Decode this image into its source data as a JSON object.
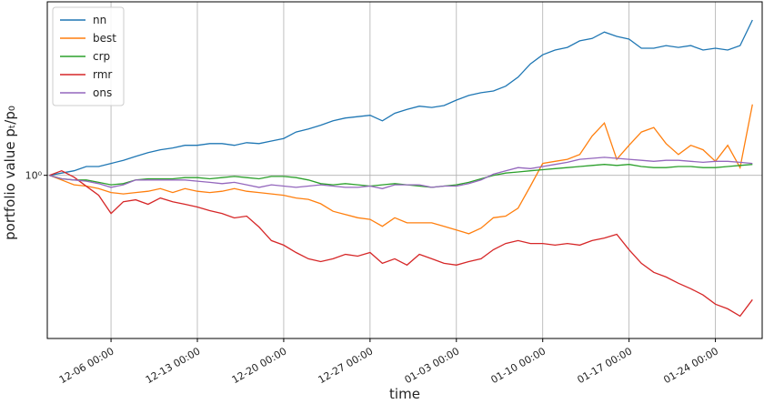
{
  "chart_data": {
    "type": "line",
    "xlabel": "time",
    "ylabel": "portfolio value pₜ/p₀",
    "x": [
      "12-01 00:00",
      "12-02 00:00",
      "12-03 00:00",
      "12-04 00:00",
      "12-05 00:00",
      "12-06 00:00",
      "12-07 00:00",
      "12-08 00:00",
      "12-09 00:00",
      "12-10 00:00",
      "12-11 00:00",
      "12-12 00:00",
      "12-13 00:00",
      "12-14 00:00",
      "12-15 00:00",
      "12-16 00:00",
      "12-17 00:00",
      "12-18 00:00",
      "12-19 00:00",
      "12-20 00:00",
      "12-21 00:00",
      "12-22 00:00",
      "12-23 00:00",
      "12-24 00:00",
      "12-25 00:00",
      "12-26 00:00",
      "12-27 00:00",
      "12-28 00:00",
      "12-29 00:00",
      "12-30 00:00",
      "12-31 00:00",
      "01-01 00:00",
      "01-02 00:00",
      "01-03 00:00",
      "01-04 00:00",
      "01-05 00:00",
      "01-06 00:00",
      "01-07 00:00",
      "01-08 00:00",
      "01-09 00:00",
      "01-10 00:00",
      "01-11 00:00",
      "01-12 00:00",
      "01-13 00:00",
      "01-14 00:00",
      "01-15 00:00",
      "01-16 00:00",
      "01-17 00:00",
      "01-18 00:00",
      "01-19 00:00",
      "01-20 00:00",
      "01-21 00:00",
      "01-22 00:00",
      "01-23 00:00",
      "01-24 00:00",
      "01-25 00:00",
      "01-26 00:00",
      "01-27 00:00"
    ],
    "series": [
      {
        "name": "nn",
        "color": "#1f77b4",
        "values": [
          1.0,
          1.02,
          1.04,
          1.08,
          1.08,
          1.11,
          1.14,
          1.18,
          1.22,
          1.25,
          1.27,
          1.3,
          1.3,
          1.32,
          1.32,
          1.3,
          1.33,
          1.32,
          1.35,
          1.38,
          1.46,
          1.5,
          1.55,
          1.61,
          1.65,
          1.67,
          1.69,
          1.61,
          1.72,
          1.78,
          1.83,
          1.81,
          1.84,
          1.93,
          2.01,
          2.06,
          2.09,
          2.18,
          2.36,
          2.65,
          2.87,
          2.99,
          3.06,
          3.24,
          3.31,
          3.5,
          3.37,
          3.29,
          3.04,
          3.04,
          3.11,
          3.06,
          3.11,
          2.99,
          3.04,
          2.99,
          3.11,
          3.89
        ]
      },
      {
        "name": "best",
        "color": "#ff7f0e",
        "values": [
          1.0,
          0.96,
          0.92,
          0.91,
          0.89,
          0.86,
          0.85,
          0.86,
          0.87,
          0.89,
          0.86,
          0.89,
          0.87,
          0.86,
          0.87,
          0.89,
          0.87,
          0.86,
          0.85,
          0.84,
          0.82,
          0.81,
          0.78,
          0.73,
          0.71,
          0.69,
          0.68,
          0.64,
          0.69,
          0.66,
          0.66,
          0.66,
          0.64,
          0.62,
          0.6,
          0.63,
          0.69,
          0.7,
          0.75,
          0.91,
          1.11,
          1.13,
          1.15,
          1.2,
          1.41,
          1.58,
          1.15,
          1.3,
          1.46,
          1.52,
          1.32,
          1.2,
          1.3,
          1.25,
          1.13,
          1.3,
          1.07,
          1.86
        ]
      },
      {
        "name": "crp",
        "color": "#2ca02c",
        "values": [
          1.0,
          0.97,
          0.96,
          0.96,
          0.94,
          0.92,
          0.93,
          0.96,
          0.97,
          0.97,
          0.97,
          0.98,
          0.98,
          0.97,
          0.98,
          0.99,
          0.98,
          0.97,
          0.99,
          0.99,
          0.98,
          0.96,
          0.93,
          0.92,
          0.93,
          0.92,
          0.91,
          0.92,
          0.93,
          0.92,
          0.91,
          0.9,
          0.91,
          0.92,
          0.94,
          0.97,
          1.0,
          1.02,
          1.03,
          1.04,
          1.05,
          1.06,
          1.07,
          1.08,
          1.09,
          1.1,
          1.09,
          1.1,
          1.08,
          1.07,
          1.07,
          1.08,
          1.08,
          1.07,
          1.07,
          1.08,
          1.09,
          1.1
        ]
      },
      {
        "name": "rmr",
        "color": "#d62728",
        "values": [
          1.0,
          1.04,
          0.984,
          0.909,
          0.84,
          0.716,
          0.794,
          0.807,
          0.776,
          0.82,
          0.794,
          0.776,
          0.758,
          0.734,
          0.716,
          0.689,
          0.7,
          0.636,
          0.565,
          0.543,
          0.509,
          0.482,
          0.47,
          0.482,
          0.501,
          0.493,
          0.509,
          0.463,
          0.482,
          0.456,
          0.501,
          0.482,
          0.463,
          0.456,
          0.47,
          0.482,
          0.522,
          0.551,
          0.565,
          0.551,
          0.551,
          0.543,
          0.551,
          0.543,
          0.565,
          0.578,
          0.597,
          0.522,
          0.463,
          0.428,
          0.411,
          0.389,
          0.371,
          0.351,
          0.324,
          0.311,
          0.292,
          0.337
        ]
      },
      {
        "name": "ons",
        "color": "#9467bd",
        "values": [
          1.0,
          0.97,
          0.96,
          0.95,
          0.93,
          0.9,
          0.92,
          0.96,
          0.96,
          0.96,
          0.96,
          0.96,
          0.95,
          0.94,
          0.93,
          0.94,
          0.92,
          0.9,
          0.92,
          0.91,
          0.9,
          0.91,
          0.92,
          0.91,
          0.9,
          0.9,
          0.91,
          0.89,
          0.92,
          0.92,
          0.92,
          0.9,
          0.91,
          0.91,
          0.93,
          0.96,
          1.01,
          1.04,
          1.07,
          1.06,
          1.08,
          1.1,
          1.12,
          1.15,
          1.16,
          1.17,
          1.16,
          1.15,
          1.14,
          1.13,
          1.14,
          1.14,
          1.13,
          1.12,
          1.13,
          1.13,
          1.12,
          1.11
        ]
      }
    ],
    "xlim": [
      "11-30 20:00",
      "01-27 19:00"
    ],
    "xticks": [
      "12-06 00:00",
      "12-13 00:00",
      "12-20 00:00",
      "12-27 00:00",
      "01-03 00:00",
      "01-10 00:00",
      "01-17 00:00",
      "01-24 00:00"
    ],
    "ylim": [
      0.24,
      4.56
    ],
    "yscale": "log",
    "yticks": [
      {
        "value": 1,
        "label": "10⁰"
      }
    ],
    "grid": true,
    "legend": "upper left"
  }
}
